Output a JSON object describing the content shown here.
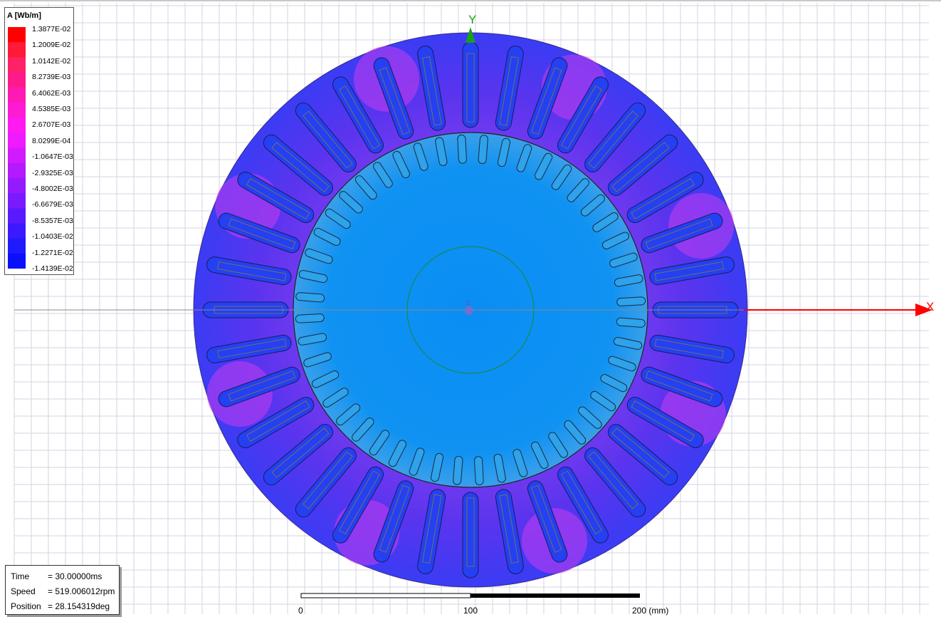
{
  "legend": {
    "title": "A [Wb/m]",
    "values": [
      "1.3877E-02",
      "1.2009E-02",
      "1.0142E-02",
      "8.2739E-03",
      "6.4062E-03",
      "4.5385E-03",
      "2.6707E-03",
      "8.0299E-04",
      "-1.0647E-03",
      "-2.9325E-03",
      "-4.8002E-03",
      "-6.6679E-03",
      "-8.5357E-03",
      "-1.0403E-02",
      "-1.2271E-02",
      "-1.4139E-02"
    ],
    "colors": [
      "#ff0000",
      "#ff1a38",
      "#ff2266",
      "#ff1a8c",
      "#ff1ab4",
      "#ff1ad6",
      "#ff1af2",
      "#f01aff",
      "#d21aff",
      "#b31aff",
      "#941aff",
      "#7a1aff",
      "#5a1aff",
      "#3c1aff",
      "#201aff",
      "#0a10ff"
    ]
  },
  "axes": {
    "x_label": "X",
    "y_label": "Y",
    "origin_marker": "z",
    "x_color": "#ff0000",
    "y_color": "#00a000"
  },
  "info": {
    "time_label": "Time",
    "time_value": "= 30.00000ms",
    "speed_label": "Speed",
    "speed_value": "= 519.006012rpm",
    "position_label": "Position",
    "position_value": "= 28.154319deg"
  },
  "scale_bar": {
    "labels": [
      "0",
      "100",
      "200 (mm)"
    ]
  },
  "model": {
    "stator_slots": 36,
    "rotor_bars": 48,
    "colors": {
      "stator_base": "#4a2cf0",
      "stator_slot_fill": "#2a40f4",
      "rotor_fill": "#0a8cf4",
      "rotor_bar": "#29a0e8",
      "shaft_ring": "#1a8a2a",
      "grid": "#cfcfdf"
    }
  }
}
